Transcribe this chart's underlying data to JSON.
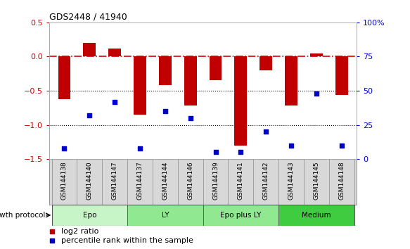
{
  "title": "GDS2448 / 41940",
  "samples": [
    "GSM144138",
    "GSM144140",
    "GSM144147",
    "GSM144137",
    "GSM144144",
    "GSM144146",
    "GSM144139",
    "GSM144141",
    "GSM144142",
    "GSM144143",
    "GSM144145",
    "GSM144148"
  ],
  "log2_ratio": [
    -0.62,
    0.2,
    0.12,
    -0.85,
    -0.42,
    -0.72,
    -0.35,
    -1.3,
    -0.2,
    -0.72,
    0.05,
    -0.56
  ],
  "percentile_rank": [
    8,
    32,
    42,
    8,
    35,
    30,
    5,
    5,
    20,
    10,
    48,
    10
  ],
  "groups": [
    {
      "label": "Epo",
      "start": 0,
      "end": 3,
      "color": "#c8f5c8"
    },
    {
      "label": "LY",
      "start": 3,
      "end": 6,
      "color": "#90e890"
    },
    {
      "label": "Epo plus LY",
      "start": 6,
      "end": 9,
      "color": "#90e890"
    },
    {
      "label": "Medium",
      "start": 9,
      "end": 12,
      "color": "#40cc40"
    }
  ],
  "ylim_left": [
    -1.5,
    0.5
  ],
  "ylim_right": [
    0,
    100
  ],
  "bar_color": "#c00000",
  "dot_color": "#0000cc",
  "hline_color": "#cc0000",
  "left_yticks": [
    -1.5,
    -1.0,
    -0.5,
    0.0,
    0.5
  ],
  "right_yticks": [
    0,
    25,
    50,
    75,
    100
  ],
  "background_color": "#ffffff"
}
